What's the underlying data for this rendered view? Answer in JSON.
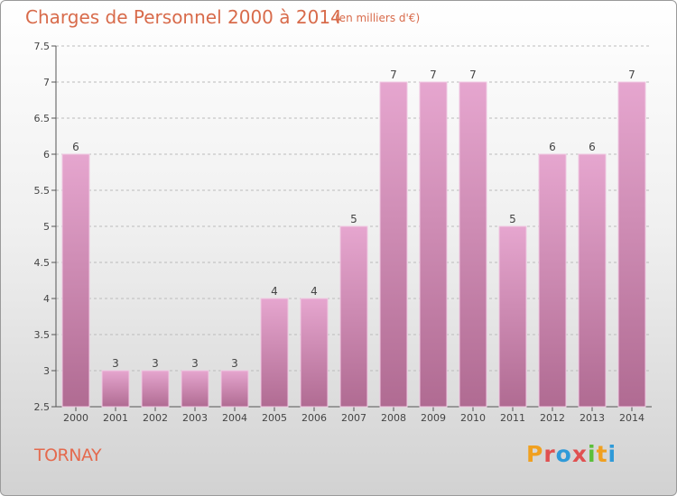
{
  "header": {
    "title": "Charges de Personnel 2000 à 2014",
    "subtitle": "(en milliers d'€)"
  },
  "footer": {
    "commune": "TORNAY",
    "logo_text": "Proxiti",
    "logo_colors": [
      "#f0a020",
      "#e05050",
      "#2f9ad8",
      "#e05050",
      "#5bbf3a",
      "#f0a020",
      "#2f9ad8"
    ]
  },
  "colors": {
    "bar_top": "#e6a6cf",
    "bar_bottom": "#b06b92",
    "grid": "#bbbbbb",
    "text": "#d86b4b"
  },
  "chart_data": {
    "type": "bar",
    "title": "Charges de Personnel 2000 à 2014",
    "subtitle": "(en milliers d'€)",
    "categories": [
      "2000",
      "2001",
      "2002",
      "2003",
      "2004",
      "2005",
      "2006",
      "2007",
      "2008",
      "2009",
      "2010",
      "2011",
      "2012",
      "2013",
      "2014"
    ],
    "values": [
      6,
      3,
      3,
      3,
      3,
      4,
      4,
      5,
      7,
      7,
      7,
      5,
      6,
      6,
      7
    ],
    "ylim": [
      2.5,
      7.5
    ],
    "yticks": [
      "2.5",
      "3",
      "3.5",
      "4",
      "4.5",
      "5",
      "5.5",
      "6",
      "6.5",
      "7",
      "7.5"
    ],
    "grid": true
  }
}
